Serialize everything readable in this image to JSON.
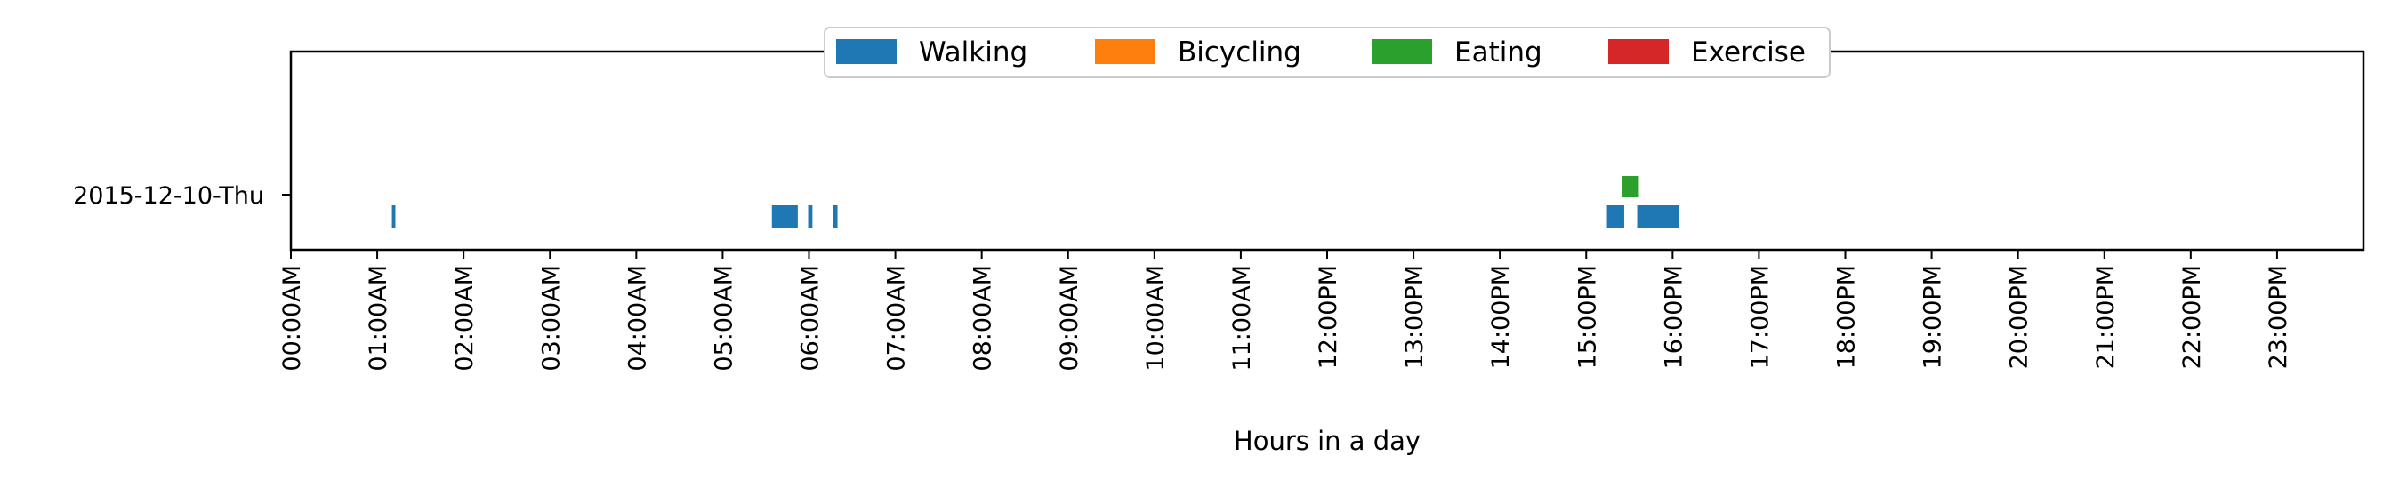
{
  "chart_data": {
    "type": "timeline",
    "xlabel": "Hours in a day",
    "xlim": [
      0,
      24
    ],
    "x_unit": "hours",
    "days": [
      "2015-12-10-Thu"
    ],
    "tick_labels": [
      "00:00AM",
      "01:00AM",
      "02:00AM",
      "03:00AM",
      "04:00AM",
      "05:00AM",
      "06:00AM",
      "07:00AM",
      "08:00AM",
      "09:00AM",
      "10:00AM",
      "11:00AM",
      "12:00PM",
      "13:00PM",
      "14:00PM",
      "15:00PM",
      "16:00PM",
      "17:00PM",
      "18:00PM",
      "19:00PM",
      "20:00PM",
      "21:00PM",
      "22:00PM",
      "23:00PM"
    ],
    "legend_position": "top-center",
    "series": [
      {
        "name": "Walking",
        "color": "#1f77b4",
        "level": "lower",
        "intervals": [
          [
            1.17,
            1.21
          ],
          [
            5.57,
            5.87
          ],
          [
            5.99,
            6.04
          ],
          [
            6.28,
            6.33
          ],
          [
            15.24,
            15.44
          ],
          [
            15.59,
            16.07
          ]
        ]
      },
      {
        "name": "Bicycling",
        "color": "#ff7f0e",
        "level": "lower",
        "intervals": []
      },
      {
        "name": "Eating",
        "color": "#2ca02c",
        "level": "upper",
        "intervals": [
          [
            15.42,
            15.61
          ]
        ]
      },
      {
        "name": "Exercise",
        "color": "#d62728",
        "level": "lower",
        "intervals": []
      }
    ]
  }
}
